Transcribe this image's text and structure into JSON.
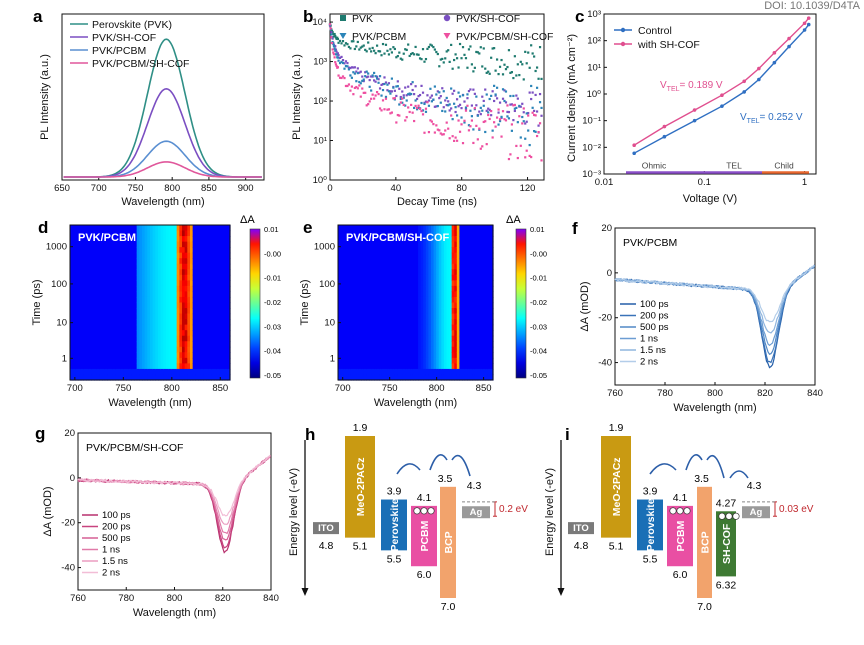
{
  "doi": "DOI: 10.1039/D4TA",
  "chart_data": [
    {
      "panel": "a",
      "type": "line",
      "xlabel": "Wavelength (nm)",
      "ylabel": "PL Intensity (a.u.)",
      "xlim": [
        650,
        925
      ],
      "xticks": [
        650,
        700,
        750,
        800,
        850,
        900
      ],
      "peak_nm": 792,
      "fwhm_nm": 60,
      "series": [
        {
          "name": "Perovskite (PVK)",
          "color": "#2f8f86",
          "peak": 1.0
        },
        {
          "name": "PVK/SH-COF",
          "color": "#7b4fc2",
          "peak": 0.64
        },
        {
          "name": "PVK/PCBM",
          "color": "#5a8fd1",
          "peak": 0.26
        },
        {
          "name": "PVK/PCBM/SH-COF",
          "color": "#e0579b",
          "peak": 0.11
        }
      ]
    },
    {
      "panel": "b",
      "type": "scatter",
      "xlabel": "Decay Time (ns)",
      "ylabel": "PL Intensity (a.u.)",
      "xlim": [
        0,
        130
      ],
      "xticks": [
        0,
        40,
        80,
        120
      ],
      "ylog": true,
      "ylim": [
        1,
        10000
      ],
      "yticks": [
        {
          "v": 1,
          "l": "10⁰"
        },
        {
          "v": 10,
          "l": "10¹"
        },
        {
          "v": 100,
          "l": "10²"
        },
        {
          "v": 1000,
          "l": "10³"
        },
        {
          "v": 10000,
          "l": "10⁴"
        }
      ],
      "series": [
        {
          "name": "PVK",
          "color": "#1e7a6f",
          "x": [
            0,
            2,
            5,
            10,
            20,
            40,
            60,
            80,
            100,
            120,
            130
          ],
          "y": [
            9000,
            5000,
            3500,
            2800,
            2300,
            1800,
            1500,
            1300,
            1150,
            1000,
            950
          ]
        },
        {
          "name": "PVK/PCBM",
          "color": "#2b84b8",
          "x": [
            0,
            2,
            5,
            10,
            20,
            40,
            60,
            80,
            100,
            120,
            130
          ],
          "y": [
            9000,
            2500,
            1200,
            700,
            380,
            180,
            110,
            80,
            60,
            45,
            40
          ]
        },
        {
          "name": "PVK/SH-COF",
          "color": "#7b4fc2",
          "x": [
            0,
            2,
            5,
            10,
            20,
            40,
            60,
            80,
            100,
            120,
            130
          ],
          "y": [
            9000,
            3000,
            1400,
            800,
            420,
            210,
            140,
            100,
            80,
            65,
            60
          ]
        },
        {
          "name": "PVK/PCBM/SH-COF",
          "color": "#ee4fa0",
          "x": [
            0,
            2,
            5,
            10,
            20,
            40,
            60,
            80,
            100,
            120,
            130
          ],
          "y": [
            9000,
            1600,
            600,
            300,
            140,
            60,
            35,
            25,
            18,
            15,
            14
          ]
        }
      ]
    },
    {
      "panel": "c",
      "type": "line",
      "xlabel": "Voltage (V)",
      "ylabel": "Current density (mA cm⁻²)",
      "xlog": true,
      "ylog": true,
      "xlim": [
        0.01,
        1.3
      ],
      "ylim": [
        0.001,
        1000
      ],
      "xticks": [
        {
          "v": 0.01,
          "l": "0.01"
        },
        {
          "v": 0.1,
          "l": "0.1"
        },
        {
          "v": 1,
          "l": "1"
        }
      ],
      "yticks": [
        {
          "v": 0.001,
          "l": "10⁻³"
        },
        {
          "v": 0.01,
          "l": "10⁻²"
        },
        {
          "v": 0.1,
          "l": "10⁻¹"
        },
        {
          "v": 1,
          "l": "10⁰"
        },
        {
          "v": 10,
          "l": "10¹"
        },
        {
          "v": 100,
          "l": "10²"
        },
        {
          "v": 1000,
          "l": "10³"
        }
      ],
      "series": [
        {
          "name": "Control",
          "color": "#2f6fc2",
          "x": [
            0.02,
            0.04,
            0.08,
            0.15,
            0.25,
            0.35,
            0.5,
            0.7,
            1.0,
            1.1
          ],
          "y": [
            0.006,
            0.025,
            0.1,
            0.35,
            1.2,
            3.5,
            15,
            60,
            250,
            400
          ]
        },
        {
          "name": "with SH-COF",
          "color": "#e04f8f",
          "x": [
            0.02,
            0.04,
            0.08,
            0.15,
            0.25,
            0.35,
            0.5,
            0.7,
            1.0,
            1.1
          ],
          "y": [
            0.012,
            0.06,
            0.25,
            0.9,
            3,
            9,
            35,
            120,
            450,
            700
          ]
        }
      ],
      "annotations": [
        {
          "text": "V",
          "sub": "TEL",
          "value": "= 0.189 V",
          "color": "#e04f8f"
        },
        {
          "text": "V",
          "sub": "TEL",
          "value": "= 0.252 V",
          "color": "#2f6fc2"
        }
      ],
      "regions": [
        "Ohmic",
        "TEL",
        "Child"
      ]
    },
    {
      "panel": "d",
      "type": "heatmap",
      "label": "PVK/PCBM",
      "xlabel": "Wavelength (nm)",
      "ylabel": "Time (ps)",
      "xlim": [
        695,
        860
      ],
      "xticks": [
        700,
        750,
        800,
        850
      ],
      "yticks": [
        "1",
        "10",
        "100",
        "1000"
      ],
      "cbar_title": "ΔA",
      "cbar_ticks": [
        "0.01",
        "-0.00",
        "-0.01",
        "-0.02",
        "-0.03",
        "-0.04",
        "-0.05"
      ],
      "band_center_nm": 813,
      "band_width_nm": 10
    },
    {
      "panel": "e",
      "type": "heatmap",
      "label": "PVK/PCBM/SH-COF",
      "xlabel": "Wavelength (nm)",
      "ylabel": "Time (ps)",
      "xlim": [
        695,
        860
      ],
      "xticks": [
        700,
        750,
        800,
        850
      ],
      "yticks": [
        "1",
        "10",
        "100",
        "1000"
      ],
      "cbar_title": "ΔA",
      "cbar_ticks": [
        "0.01",
        "-0.00",
        "-0.01",
        "-0.02",
        "-0.03",
        "-0.04",
        "-0.05"
      ],
      "band_center_nm": 819,
      "band_width_nm": 5
    },
    {
      "panel": "f",
      "type": "line",
      "label": "PVK/PCBM",
      "xlabel": "Wavelength (nm)",
      "ylabel": "ΔA (mOD)",
      "xlim": [
        760,
        840
      ],
      "ylim": [
        -50,
        20
      ],
      "xticks": [
        760,
        780,
        800,
        820,
        840
      ],
      "yticks": [
        -40,
        -20,
        0,
        20
      ],
      "dip_nm": 822,
      "series": [
        {
          "name": "100 ps",
          "color": "#245ea8",
          "min": -42
        },
        {
          "name": "200 ps",
          "color": "#3a73b8",
          "min": -40
        },
        {
          "name": "500 ps",
          "color": "#5088c6",
          "min": -36
        },
        {
          "name": "1 ns",
          "color": "#6c9dd3",
          "min": -32
        },
        {
          "name": "1.5 ns",
          "color": "#8fb5de",
          "min": -27
        },
        {
          "name": "2 ns",
          "color": "#b3cde9",
          "min": -22
        }
      ]
    },
    {
      "panel": "g",
      "type": "line",
      "label": "PVK/PCBM/SH-COF",
      "xlabel": "Wavelength (nm)",
      "ylabel": "ΔA (mOD)",
      "xlim": [
        760,
        840
      ],
      "ylim": [
        -50,
        20
      ],
      "xticks": [
        760,
        780,
        800,
        820,
        840
      ],
      "yticks": [
        -40,
        -20,
        0,
        20
      ],
      "dip_nm": 821,
      "series": [
        {
          "name": "100 ps",
          "color": "#b8316e",
          "min": -33
        },
        {
          "name": "200 ps",
          "color": "#c8447f",
          "min": -31
        },
        {
          "name": "500 ps",
          "color": "#d65f94",
          "min": -28
        },
        {
          "name": "1 ns",
          "color": "#e07aa8",
          "min": -25
        },
        {
          "name": "1.5 ns",
          "color": "#ea9cc0",
          "min": -21
        },
        {
          "name": "2 ns",
          "color": "#f2bdd6",
          "min": -17
        }
      ]
    },
    {
      "panel": "h",
      "type": "diagram",
      "ylabel": "Energy level (-eV)",
      "offset_label": "0.2 eV",
      "bars": [
        {
          "name": "ITO",
          "top": 4.8,
          "bottom": 4.8,
          "color": "#7a7a7a",
          "top_label": "",
          "bottom_label": "4.8"
        },
        {
          "name": "MeO-2PACz",
          "top": 1.9,
          "bottom": 5.1,
          "color": "#c99a12",
          "top_label": "1.9",
          "bottom_label": "5.1"
        },
        {
          "name": "Perovskite",
          "top": 3.9,
          "bottom": 5.5,
          "color": "#1a6fb6",
          "top_label": "3.9",
          "bottom_label": "5.5"
        },
        {
          "name": "PCBM",
          "top": 4.1,
          "bottom": 6.0,
          "color": "#e94fa3",
          "top_label": "4.1",
          "bottom_label": "6.0"
        },
        {
          "name": "BCP",
          "top": 3.5,
          "bottom": 7.0,
          "color": "#f2a36c",
          "top_label": "3.5",
          "bottom_label": "7.0"
        },
        {
          "name": "Ag",
          "top": 4.3,
          "bottom": 4.3,
          "color": "#9a9a9a",
          "top_label": "4.3",
          "bottom_label": ""
        }
      ]
    },
    {
      "panel": "i",
      "type": "diagram",
      "ylabel": "Energy level (-eV)",
      "offset_label": "0.03 eV",
      "bars": [
        {
          "name": "ITO",
          "top": 4.8,
          "bottom": 4.8,
          "color": "#7a7a7a",
          "top_label": "",
          "bottom_label": "4.8"
        },
        {
          "name": "MeO-2PACz",
          "top": 1.9,
          "bottom": 5.1,
          "color": "#c99a12",
          "top_label": "1.9",
          "bottom_label": "5.1"
        },
        {
          "name": "Perovskite",
          "top": 3.9,
          "bottom": 5.5,
          "color": "#1a6fb6",
          "top_label": "3.9",
          "bottom_label": "5.5"
        },
        {
          "name": "PCBM",
          "top": 4.1,
          "bottom": 6.0,
          "color": "#e94fa3",
          "top_label": "4.1",
          "bottom_label": "6.0"
        },
        {
          "name": "BCP",
          "top": 3.5,
          "bottom": 7.0,
          "color": "#f2a36c",
          "top_label": "3.5",
          "bottom_label": "7.0"
        },
        {
          "name": "SH-COF",
          "top": 4.27,
          "bottom": 6.32,
          "color": "#3e7a33",
          "top_label": "4.27",
          "bottom_label": "6.32"
        },
        {
          "name": "Ag",
          "top": 4.3,
          "bottom": 4.3,
          "color": "#9a9a9a",
          "top_label": "4.3",
          "bottom_label": ""
        }
      ]
    }
  ]
}
